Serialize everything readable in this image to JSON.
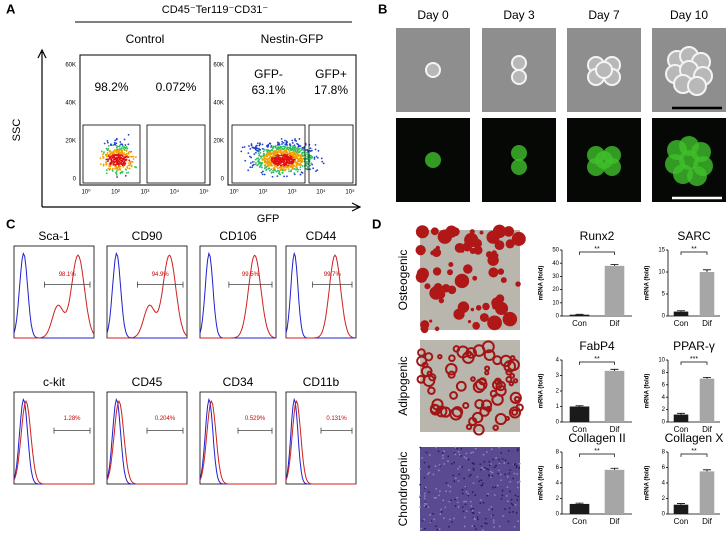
{
  "panel_a": {
    "label": "A",
    "header": "CD45⁻Ter119⁻CD31⁻",
    "y_label": "SSC",
    "x_label": "GFP",
    "yticks": [
      "60K",
      "40K",
      "20K",
      "0"
    ],
    "xticks": [
      "10⁰",
      "10²",
      "10³",
      "10⁴",
      "10⁵"
    ],
    "plots": [
      {
        "title": "Control",
        "gates": [
          [
            "98.2%"
          ],
          [
            "0.072%"
          ]
        ]
      },
      {
        "title": "Nestin-GFP",
        "gates": [
          [
            "GFP-",
            "63.1%"
          ],
          [
            "GFP+",
            "17.8%"
          ]
        ]
      }
    ]
  },
  "panel_b": {
    "label": "B",
    "days": [
      "Day 0",
      "Day 3",
      "Day 7",
      "Day 10"
    ]
  },
  "panel_c": {
    "label": "C",
    "markers": [
      {
        "name": "Sca-1",
        "percent": "98.1%"
      },
      {
        "name": "CD90",
        "percent": "94.9%"
      },
      {
        "name": "CD106",
        "percent": "99.5%"
      },
      {
        "name": "CD44",
        "percent": "99.7%"
      },
      {
        "name": "c-kit",
        "percent": "1.28%"
      },
      {
        "name": "CD45",
        "percent": "0.204%"
      },
      {
        "name": "CD34",
        "percent": "0.529%"
      },
      {
        "name": "CD11b",
        "percent": "0.131%"
      }
    ]
  },
  "panel_d": {
    "label": "D",
    "rows": [
      {
        "name": "Osteogenic",
        "charts": [
          {
            "type": "bar",
            "title": "Runx2",
            "y_label": "mRNA (fold)",
            "categories": [
              "Con",
              "Dif"
            ],
            "values": [
              1,
              38
            ],
            "errors": [
              0.3,
              1
            ],
            "colors": [
              "#1a1a1a",
              "#a6a6a6"
            ],
            "ylim": [
              0,
              50
            ],
            "yticks": [
              0,
              10,
              20,
              30,
              40,
              50
            ],
            "significance": "**"
          },
          {
            "type": "bar",
            "title": "SARC",
            "y_label": "mRNA (fold)",
            "categories": [
              "Con",
              "Dif"
            ],
            "values": [
              1,
              10
            ],
            "errors": [
              0.2,
              0.5
            ],
            "colors": [
              "#1a1a1a",
              "#a6a6a6"
            ],
            "ylim": [
              0,
              15
            ],
            "yticks": [
              0,
              5,
              10,
              15
            ],
            "significance": "**"
          }
        ]
      },
      {
        "name": "Adipogenic",
        "charts": [
          {
            "type": "bar",
            "title": "FabP4",
            "y_label": "mRNA (fold)",
            "categories": [
              "Con",
              "Dif"
            ],
            "values": [
              1,
              3.3
            ],
            "errors": [
              0.05,
              0.1
            ],
            "colors": [
              "#1a1a1a",
              "#a6a6a6"
            ],
            "ylim": [
              0,
              4
            ],
            "yticks": [
              0,
              1,
              2,
              3,
              4
            ],
            "significance": "**"
          },
          {
            "type": "bar",
            "title": "PPAR-γ",
            "y_label": "mRNA (fold)",
            "categories": [
              "Con",
              "Dif"
            ],
            "values": [
              1.2,
              7
            ],
            "errors": [
              0.2,
              0.2
            ],
            "colors": [
              "#1a1a1a",
              "#a6a6a6"
            ],
            "ylim": [
              0,
              10
            ],
            "yticks": [
              0,
              2,
              4,
              6,
              8,
              10
            ],
            "significance": "***"
          }
        ]
      },
      {
        "name": "Chondrogenic",
        "charts": [
          {
            "type": "bar",
            "title": "Collagen II",
            "y_label": "mRNA (fold)",
            "categories": [
              "Con",
              "Dif"
            ],
            "values": [
              1.3,
              5.7
            ],
            "errors": [
              0.1,
              0.2
            ],
            "colors": [
              "#1a1a1a",
              "#a6a6a6"
            ],
            "ylim": [
              0,
              8
            ],
            "yticks": [
              0,
              2,
              4,
              6,
              8
            ],
            "significance": "**"
          },
          {
            "type": "bar",
            "title": "Collagen X",
            "y_label": "mRNA (fold)",
            "categories": [
              "Con",
              "Dif"
            ],
            "values": [
              1.2,
              5.5
            ],
            "errors": [
              0.15,
              0.2
            ],
            "colors": [
              "#1a1a1a",
              "#a6a6a6"
            ],
            "ylim": [
              0,
              8
            ],
            "yticks": [
              0,
              2,
              4,
              6,
              8
            ],
            "significance": "**"
          }
        ]
      }
    ]
  }
}
